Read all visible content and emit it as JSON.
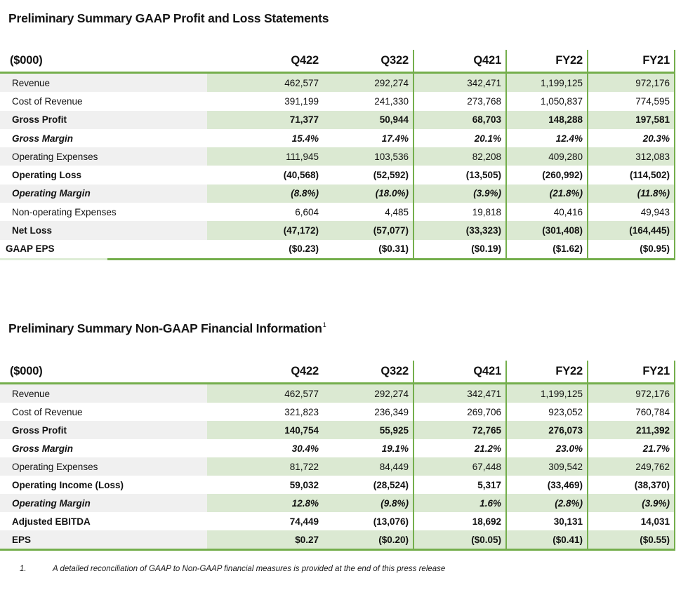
{
  "gaap_section": {
    "title": "Preliminary Summary GAAP Profit and Loss Statements",
    "table": {
      "unit_label": "($000)",
      "columns": [
        "Q422",
        "Q322",
        "Q421",
        "FY22",
        "FY21"
      ],
      "rows": [
        {
          "label": "Revenue",
          "values": [
            "462,577",
            "292,274",
            "342,471",
            "1,199,125",
            "972,176"
          ],
          "style": "normal",
          "shaded": true
        },
        {
          "label": "Cost of Revenue",
          "values": [
            "391,199",
            "241,330",
            "273,768",
            "1,050,837",
            "774,595"
          ],
          "style": "normal",
          "shaded": false
        },
        {
          "label": "Gross Profit",
          "values": [
            "71,377",
            "50,944",
            "68,703",
            "148,288",
            "197,581"
          ],
          "style": "bold",
          "shaded": true
        },
        {
          "label": "Gross Margin",
          "values": [
            "15.4%",
            "17.4%",
            "20.1%",
            "12.4%",
            "20.3%"
          ],
          "style": "bold-italic",
          "shaded": false
        },
        {
          "label": "Operating Expenses",
          "values": [
            "111,945",
            "103,536",
            "82,208",
            "409,280",
            "312,083"
          ],
          "style": "normal",
          "shaded": true
        },
        {
          "label": "Operating Loss",
          "values": [
            "(40,568)",
            "(52,592)",
            "(13,505)",
            "(260,992)",
            "(114,502)"
          ],
          "style": "bold",
          "shaded": false
        },
        {
          "label": "Operating Margin",
          "values": [
            "(8.8%)",
            "(18.0%)",
            "(3.9%)",
            "(21.8%)",
            "(11.8%)"
          ],
          "style": "bold-italic",
          "shaded": true
        },
        {
          "label": "Non-operating Expenses",
          "values": [
            "6,604",
            "4,485",
            "19,818",
            "40,416",
            "49,943"
          ],
          "style": "normal",
          "shaded": false
        },
        {
          "label": "Net Loss",
          "values": [
            "(47,172)",
            "(57,077)",
            "(33,323)",
            "(301,408)",
            "(164,445)"
          ],
          "style": "bold",
          "shaded": true
        },
        {
          "label": "GAAP EPS",
          "values": [
            "($0.23)",
            "($0.31)",
            "($0.19)",
            "($1.62)",
            "($0.95)"
          ],
          "style": "bold",
          "shaded": false,
          "flush_label": true
        }
      ]
    }
  },
  "non_gaap_section": {
    "title": "Preliminary Summary Non-GAAP Financial Information",
    "title_superscript": "1",
    "table": {
      "unit_label": "($000)",
      "columns": [
        "Q422",
        "Q322",
        "Q421",
        "FY22",
        "FY21"
      ],
      "rows": [
        {
          "label": "Revenue",
          "values": [
            "462,577",
            "292,274",
            "342,471",
            "1,199,125",
            "972,176"
          ],
          "style": "normal",
          "shaded": true
        },
        {
          "label": "Cost of Revenue",
          "values": [
            "321,823",
            "236,349",
            "269,706",
            "923,052",
            "760,784"
          ],
          "style": "normal",
          "shaded": false
        },
        {
          "label": "Gross Profit",
          "values": [
            "140,754",
            "55,925",
            "72,765",
            "276,073",
            "211,392"
          ],
          "style": "bold",
          "shaded": true
        },
        {
          "label": "Gross Margin",
          "values": [
            "30.4%",
            "19.1%",
            "21.2%",
            "23.0%",
            "21.7%"
          ],
          "style": "bold-italic",
          "shaded": false
        },
        {
          "label": "Operating Expenses",
          "values": [
            "81,722",
            "84,449",
            "67,448",
            "309,542",
            "249,762"
          ],
          "style": "normal",
          "shaded": true
        },
        {
          "label": "Operating Income (Loss)",
          "values": [
            "59,032",
            "(28,524)",
            "5,317",
            "(33,469)",
            "(38,370)"
          ],
          "style": "bold",
          "shaded": false
        },
        {
          "label": "Operating Margin",
          "values": [
            "12.8%",
            "(9.8%)",
            "1.6%",
            "(2.8%)",
            "(3.9%)"
          ],
          "style": "bold-italic",
          "shaded": true
        },
        {
          "label": "Adjusted EBITDA",
          "values": [
            "74,449",
            "(13,076)",
            "18,692",
            "30,131",
            "14,031"
          ],
          "style": "bold",
          "shaded": false
        },
        {
          "label": "EPS",
          "values": [
            "$0.27",
            "($0.20)",
            "($0.05)",
            "($0.41)",
            "($0.55)"
          ],
          "style": "bold",
          "shaded": true
        }
      ]
    }
  },
  "footnote": {
    "number": "1.",
    "text": "A detailed reconciliation of GAAP to Non-GAAP financial measures is provided at the end of this press release"
  },
  "colors": {
    "border_green": "#74AE4C",
    "fill_green": "#DBE9D2",
    "fill_gray": "#F0F0F0",
    "pale_green": "#DEEDD6"
  }
}
